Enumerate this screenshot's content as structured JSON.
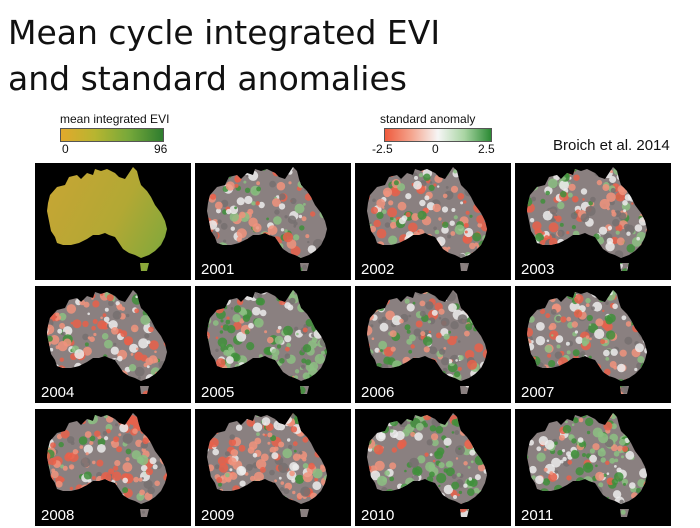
{
  "title": {
    "line1": "Mean cycle integrated EVI",
    "line2": "and standard anomalies"
  },
  "legend_evi": {
    "label": "mean integrated EVI",
    "min": "0",
    "max": "96",
    "colors": [
      "#e2a92c",
      "#b7b530",
      "#76a83a",
      "#2f7d2f"
    ]
  },
  "legend_anomaly": {
    "label": "standard anomaly",
    "ticks": [
      "-2.5",
      "0",
      "2.5"
    ],
    "colors": [
      "#ef5a3d",
      "#f4a58e",
      "#f6f6f6",
      "#a9d5a3",
      "#2b8a34"
    ]
  },
  "citation": "Broich et al. 2014",
  "panels": [
    {
      "year": "",
      "kind": "mean"
    },
    {
      "year": "2001",
      "kind": "anomaly",
      "tone": "mixed"
    },
    {
      "year": "2002",
      "kind": "anomaly",
      "tone": "red"
    },
    {
      "year": "2003",
      "kind": "anomaly",
      "tone": "mixed"
    },
    {
      "year": "2004",
      "kind": "anomaly",
      "tone": "red"
    },
    {
      "year": "2005",
      "kind": "anomaly",
      "tone": "green"
    },
    {
      "year": "2006",
      "kind": "anomaly",
      "tone": "mixed"
    },
    {
      "year": "2007",
      "kind": "anomaly",
      "tone": "mixed"
    },
    {
      "year": "2008",
      "kind": "anomaly",
      "tone": "red"
    },
    {
      "year": "2009",
      "kind": "anomaly",
      "tone": "red"
    },
    {
      "year": "2010",
      "kind": "anomaly",
      "tone": "green"
    },
    {
      "year": "2011",
      "kind": "anomaly",
      "tone": "green"
    }
  ]
}
